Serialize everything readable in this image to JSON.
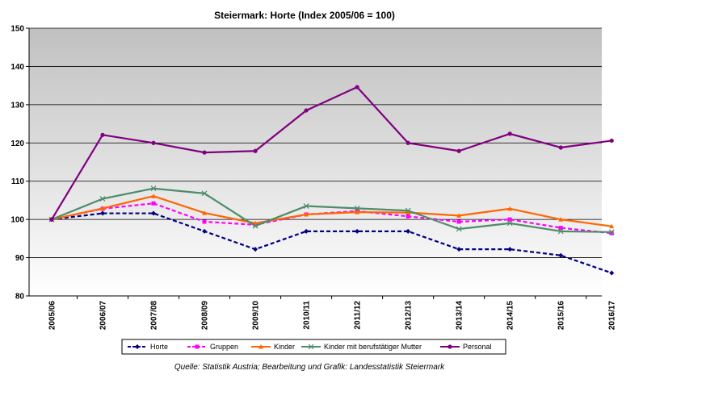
{
  "chart_data": {
    "type": "line",
    "title": "Steiermark: Horte (Index 2005/06 = 100)",
    "xlabel": "",
    "ylabel": "",
    "ylim": [
      80,
      150
    ],
    "yticks": [
      80,
      90,
      100,
      110,
      120,
      130,
      140,
      150
    ],
    "grid": true,
    "legend_position": "bottom",
    "categories": [
      "2005/06",
      "2006/07",
      "2007/08",
      "2008/09",
      "2009/10",
      "2010/11",
      "2011/12",
      "2012/13",
      "2013/14",
      "2014/15",
      "2015/16",
      "2016/17"
    ],
    "series": [
      {
        "name": "Horte",
        "color": "#000080",
        "dash": "dashed",
        "marker": "diamond",
        "values": [
          100,
          101.6,
          101.6,
          96.9,
          92.2,
          96.9,
          96.9,
          96.9,
          92.2,
          92.2,
          90.6,
          86.0
        ]
      },
      {
        "name": "Gruppen",
        "color": "#FF00FF",
        "dash": "dashed",
        "marker": "square",
        "values": [
          100,
          102.8,
          104.2,
          99.4,
          98.6,
          101.3,
          102.2,
          100.8,
          99.4,
          100.0,
          97.8,
          96.4
        ]
      },
      {
        "name": "Kinder",
        "color": "#FF6600",
        "dash": "solid",
        "marker": "triangle",
        "values": [
          100,
          102.9,
          106.1,
          101.7,
          99.0,
          101.3,
          101.9,
          101.8,
          101.0,
          102.8,
          100.0,
          98.2
        ]
      },
      {
        "name": "Kinder mit berufstätiger Mutter",
        "color": "#4E8C6A",
        "dash": "solid",
        "marker": "x",
        "values": [
          100,
          105.4,
          108.1,
          106.8,
          98.3,
          103.5,
          102.9,
          102.3,
          97.5,
          99.0,
          96.9,
          96.7
        ]
      },
      {
        "name": "Personal",
        "color": "#800080",
        "dash": "solid",
        "marker": "circle",
        "values": [
          100,
          122.1,
          120.0,
          117.5,
          117.9,
          128.5,
          134.6,
          120.0,
          117.9,
          122.4,
          118.8,
          120.6
        ]
      }
    ]
  },
  "source": "Quelle: Statistik Austria; Bearbeitung und Grafik: Landesstatistik Steiermark"
}
